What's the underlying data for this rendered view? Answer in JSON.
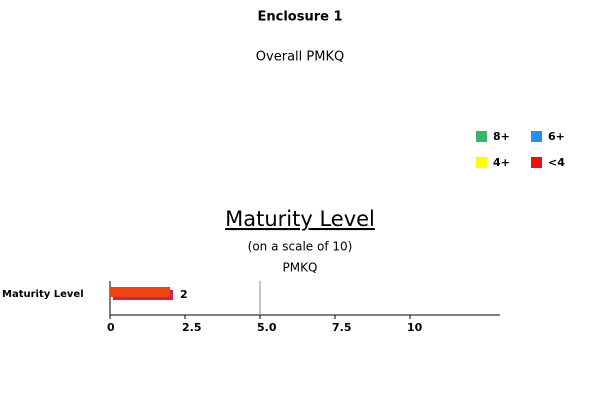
{
  "chart_data": {
    "type": "hbar",
    "title": "Enclosure 1",
    "subtitle": "Overall PMKQ",
    "chart_title": "Maturity Level",
    "chart_subtitle": "(on a scale of 10)",
    "series_label": "PMKQ",
    "legend": [
      {
        "label": "8+",
        "color": "#3cb371"
      },
      {
        "label": "6+",
        "color": "#1e90ff"
      },
      {
        "label": "4+",
        "color": "#ffff00"
      },
      {
        "label": "<4",
        "color": "#ee1111"
      }
    ],
    "categories": [
      "Maturity Level"
    ],
    "values": [
      2
    ],
    "color": "#ee4411",
    "threshold": 5,
    "xlim": [
      0,
      13
    ],
    "xticks": [
      0,
      2.5,
      {
        "value": 5,
        "label": "5.0"
      },
      7.5,
      10
    ]
  }
}
